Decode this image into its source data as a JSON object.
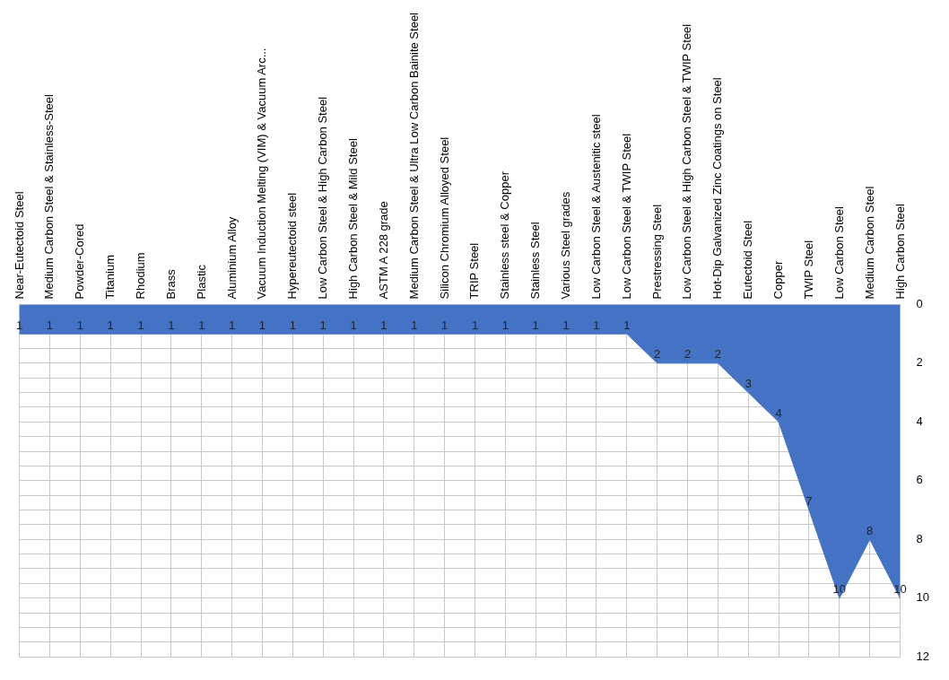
{
  "chart_data": {
    "type": "area",
    "categories": [
      "Near-Eutectoid Steel",
      "Medium Carbon Steel & Stainless-Steel",
      "Powder-Cored",
      "Titanium",
      "Rhodium",
      "Brass",
      "Plastic",
      "Aluminium Alloy",
      "Vacuum Induction Melting (VIM) & Vacuum Arc...",
      "Hypereutectoid steel",
      "Low Carbon Steel & High Carbon Steel",
      "High Carbon Steel & Mild Steel",
      "ASTM A 228 grade",
      "Medium Carbon Steel & Ultra Low Carbon Bainite Steel",
      "Silicon Chromium Alloyed Steel",
      "TRIP Steel",
      "Stainless steel & Copper",
      "Stainless Steel",
      "Various Steel grades",
      "Low Carbon Steel & Austenitic steel",
      "Low Carbon Steel & TWIP Steel",
      "Prestressing Steel",
      "Low Carbon Steel & High Carbon Steel & TWIP Steel",
      "Hot-Dip Galvanized Zinc Coatings on Steel",
      "Eutectoid Steel",
      "Copper",
      "TWIP Steel",
      "Low Carbon Steel",
      "Medium Carbon Steel",
      "High Carbon Steel"
    ],
    "values": [
      1,
      1,
      1,
      1,
      1,
      1,
      1,
      1,
      1,
      1,
      1,
      1,
      1,
      1,
      1,
      1,
      1,
      1,
      1,
      1,
      1,
      2,
      2,
      2,
      3,
      4,
      7,
      10,
      8,
      10
    ],
    "color": "#4472c4",
    "ylim": [
      12,
      0
    ],
    "yticks": [
      0,
      {
        "value": 1,
        "label": null
      },
      {
        "value": 1.5,
        "label": null
      },
      2,
      {
        "value": 2.5,
        "label": null
      },
      {
        "value": 3,
        "label": null
      },
      {
        "value": 3.5,
        "label": null
      },
      4,
      {
        "value": 4.5,
        "label": null
      },
      {
        "value": 5,
        "label": null
      },
      {
        "value": 5.5,
        "label": null
      },
      6,
      {
        "value": 6.5,
        "label": null
      },
      {
        "value": 7,
        "label": null
      },
      {
        "value": 7.5,
        "label": null
      },
      8,
      {
        "value": 8.5,
        "label": null
      },
      {
        "value": 9,
        "label": null
      },
      {
        "value": 9.5,
        "label": null
      },
      10,
      {
        "value": 10.5,
        "label": null
      },
      {
        "value": 11,
        "label": null
      },
      {
        "value": 11.5,
        "label": null
      },
      12
    ],
    "grid": true,
    "legend": false,
    "marker": "none",
    "data_labels": true
  }
}
